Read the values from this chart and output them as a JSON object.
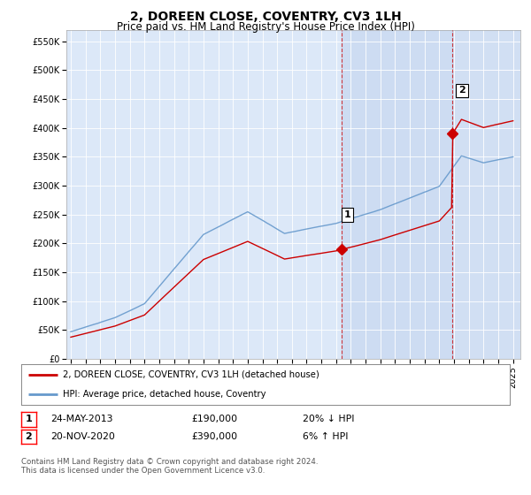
{
  "title": "2, DOREEN CLOSE, COVENTRY, CV3 1LH",
  "subtitle": "Price paid vs. HM Land Registry's House Price Index (HPI)",
  "ylabel_ticks": [
    "£0",
    "£50K",
    "£100K",
    "£150K",
    "£200K",
    "£250K",
    "£300K",
    "£350K",
    "£400K",
    "£450K",
    "£500K",
    "£550K"
  ],
  "ytick_values": [
    0,
    50000,
    100000,
    150000,
    200000,
    250000,
    300000,
    350000,
    400000,
    450000,
    500000,
    550000
  ],
  "ylim": [
    0,
    570000
  ],
  "xlim_start": 1994.7,
  "xlim_end": 2025.5,
  "plot_bg_color": "#dce8f8",
  "shade_color": "#c8d8f0",
  "hpi_line_color": "#6699cc",
  "price_line_color": "#cc0000",
  "sale1_date_num": 2013.39,
  "sale1_price": 190000,
  "sale2_date_num": 2020.9,
  "sale2_price": 390000,
  "annotation1_label": "1",
  "annotation2_label": "2",
  "legend_property_label": "2, DOREEN CLOSE, COVENTRY, CV3 1LH (detached house)",
  "legend_hpi_label": "HPI: Average price, detached house, Coventry",
  "table_row1": [
    "1",
    "24-MAY-2013",
    "£190,000",
    "20% ↓ HPI"
  ],
  "table_row2": [
    "2",
    "20-NOV-2020",
    "£390,000",
    "6% ↑ HPI"
  ],
  "footnote": "Contains HM Land Registry data © Crown copyright and database right 2024.\nThis data is licensed under the Open Government Licence v3.0.",
  "title_fontsize": 10,
  "subtitle_fontsize": 8.5,
  "tick_fontsize": 7
}
